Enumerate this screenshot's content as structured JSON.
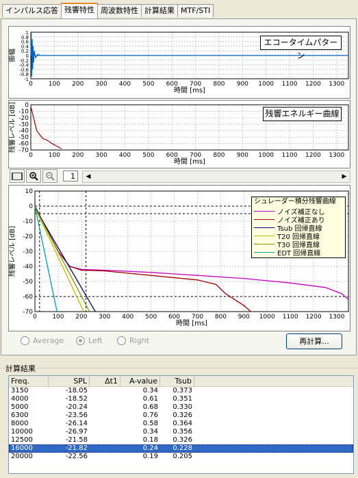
{
  "tabs": [
    "インパルス応答",
    "残響特性",
    "周波数特性",
    "計算結果",
    "MTF/STI"
  ],
  "echo": {
    "label": "エコータイムパターン",
    "ylabel": "振幅",
    "xlabel": "時間 [ms]",
    "yticks": [
      "1",
      "0.8",
      "0.6",
      "0.4",
      "0.2",
      "0",
      "-0.2",
      "-0.4",
      "-0.6",
      "-0.8",
      "-1"
    ],
    "xticks": [
      "0",
      "100",
      "200",
      "300",
      "400",
      "500",
      "600",
      "700",
      "800",
      "900",
      "1000",
      "1100",
      "1200",
      "1300"
    ]
  },
  "energy": {
    "label": "残響エネルギー曲線",
    "ylabel": "残響レベル [dB]",
    "xlabel": "時間 [ms]",
    "yticks": [
      "0",
      "-10",
      "-20",
      "-30",
      "-40",
      "-50",
      "-60",
      "-70"
    ],
    "xticks": [
      "0",
      "100",
      "200",
      "300",
      "400",
      "500",
      "600",
      "700",
      "800",
      "900",
      "1000",
      "1100",
      "1200",
      "1300"
    ]
  },
  "toolbar": {
    "page": "1"
  },
  "schroeder": {
    "ylabel": "残響レベル [dB]",
    "xlabel": "時間 [ms]",
    "yticks": [
      "10",
      "0",
      "-10",
      "-20",
      "-30",
      "-40",
      "-50",
      "-60",
      "-70"
    ],
    "xticks": [
      "0",
      "100",
      "200",
      "300",
      "400",
      "500",
      "600",
      "700",
      "800",
      "900",
      "1000",
      "1100",
      "1200",
      "1300"
    ],
    "legend": {
      "title": "シュレーダー積分残響曲線",
      "items": [
        {
          "label": "ノイズ補正なし",
          "color": "#c000c0"
        },
        {
          "label": "ノイズ補正あり",
          "color": "#a00000"
        },
        {
          "label": "Tsub 回帰直線",
          "color": "#000080"
        },
        {
          "label": "T20 回帰直線",
          "color": "#c0c000"
        },
        {
          "label": "T30 回帰直線",
          "color": "#80a000"
        },
        {
          "label": "EDT 回帰直線",
          "color": "#00a0a0"
        }
      ]
    }
  },
  "chart_data": [
    {
      "type": "line",
      "title": "エコータイムパターン",
      "xlabel": "時間 [ms]",
      "ylabel": "振幅",
      "xlim": [
        0,
        1350
      ],
      "ylim": [
        -1,
        1
      ],
      "series": [
        {
          "values": [
            [
              0,
              0
            ],
            [
              2,
              1
            ],
            [
              4,
              -0.9
            ],
            [
              6,
              0.7
            ],
            [
              8,
              -0.6
            ],
            [
              10,
              0.4
            ],
            [
              12,
              -0.3
            ],
            [
              15,
              0.2
            ],
            [
              20,
              -0.1
            ],
            [
              30,
              0.05
            ],
            [
              40,
              0
            ],
            [
              1350,
              0
            ]
          ]
        }
      ]
    },
    {
      "type": "line",
      "title": "残響エネルギー曲線",
      "xlabel": "時間 [ms]",
      "ylabel": "残響レベル [dB]",
      "xlim": [
        0,
        1350
      ],
      "ylim": [
        -70,
        0
      ],
      "series": [
        {
          "values": [
            [
              0,
              -3
            ],
            [
              5,
              -10
            ],
            [
              15,
              -25
            ],
            [
              25,
              -40
            ],
            [
              35,
              -45
            ],
            [
              50,
              -52
            ],
            [
              70,
              -55
            ],
            [
              90,
              -60
            ],
            [
              110,
              -64
            ],
            [
              130,
              -68
            ]
          ]
        }
      ]
    },
    {
      "type": "line",
      "title": "シュレーダー積分残響曲線",
      "xlabel": "時間 [ms]",
      "ylabel": "残響レベル [dB]",
      "xlim": [
        0,
        1350
      ],
      "ylim": [
        -70,
        10
      ],
      "series": [
        {
          "name": "ノイズ補正なし",
          "values": [
            [
              0,
              0
            ],
            [
              50,
              -15
            ],
            [
              100,
              -30
            ],
            [
              150,
              -40
            ],
            [
              200,
              -42
            ],
            [
              300,
              -42.5
            ],
            [
              500,
              -44
            ],
            [
              700,
              -46
            ],
            [
              900,
              -48
            ],
            [
              1100,
              -51
            ],
            [
              1250,
              -54
            ],
            [
              1320,
              -58
            ],
            [
              1350,
              -62
            ]
          ]
        },
        {
          "name": "ノイズ補正あり",
          "values": [
            [
              0,
              0
            ],
            [
              50,
              -15
            ],
            [
              100,
              -30
            ],
            [
              150,
              -40
            ],
            [
              200,
              -42.5
            ],
            [
              300,
              -43
            ],
            [
              500,
              -46
            ],
            [
              700,
              -49
            ],
            [
              780,
              -52
            ],
            [
              820,
              -58
            ],
            [
              860,
              -62
            ],
            [
              900,
              -66
            ],
            [
              930,
              -70
            ]
          ]
        },
        {
          "name": "Tsub 回帰直線",
          "values": [
            [
              0,
              -1
            ],
            [
              260,
              -70
            ]
          ]
        },
        {
          "name": "T20 回帰直線",
          "values": [
            [
              0,
              -1
            ],
            [
              210,
              -70
            ]
          ]
        },
        {
          "name": "T30 回帰直線",
          "values": [
            [
              0,
              -1
            ],
            [
              235,
              -70
            ]
          ]
        },
        {
          "name": "EDT 回帰直線",
          "values": [
            [
              0,
              0
            ],
            [
              95,
              -70
            ]
          ]
        }
      ]
    }
  ],
  "controls": {
    "radio": [
      {
        "label": "Average",
        "checked": false
      },
      {
        "label": "Left",
        "checked": true
      },
      {
        "label": "Right",
        "checked": false
      }
    ],
    "recalc": "再計算..."
  },
  "results": {
    "title": "計算結果",
    "headers": [
      "Freq.",
      "SPL",
      "Δt1",
      "A-value",
      "Tsub"
    ],
    "rows": [
      [
        "3150",
        "-18.05",
        "",
        "0.34",
        "0.373"
      ],
      [
        "4000",
        "-18.52",
        "",
        "0.61",
        "0.351"
      ],
      [
        "5000",
        "-20.24",
        "",
        "0.68",
        "0.330"
      ],
      [
        "6300",
        "-23.56",
        "",
        "0.76",
        "0.326"
      ],
      [
        "8000",
        "-26.14",
        "",
        "0.58",
        "0.364"
      ],
      [
        "10000",
        "-26.97",
        "",
        "0.34",
        "0.356"
      ],
      [
        "12500",
        "-21.58",
        "",
        "0.18",
        "0.326"
      ],
      [
        "16000",
        "-21.82",
        "",
        "0.24",
        "0.228"
      ],
      [
        "20000",
        "-22.56",
        "",
        "0.19",
        "0.205"
      ]
    ],
    "selected_row": 7
  }
}
